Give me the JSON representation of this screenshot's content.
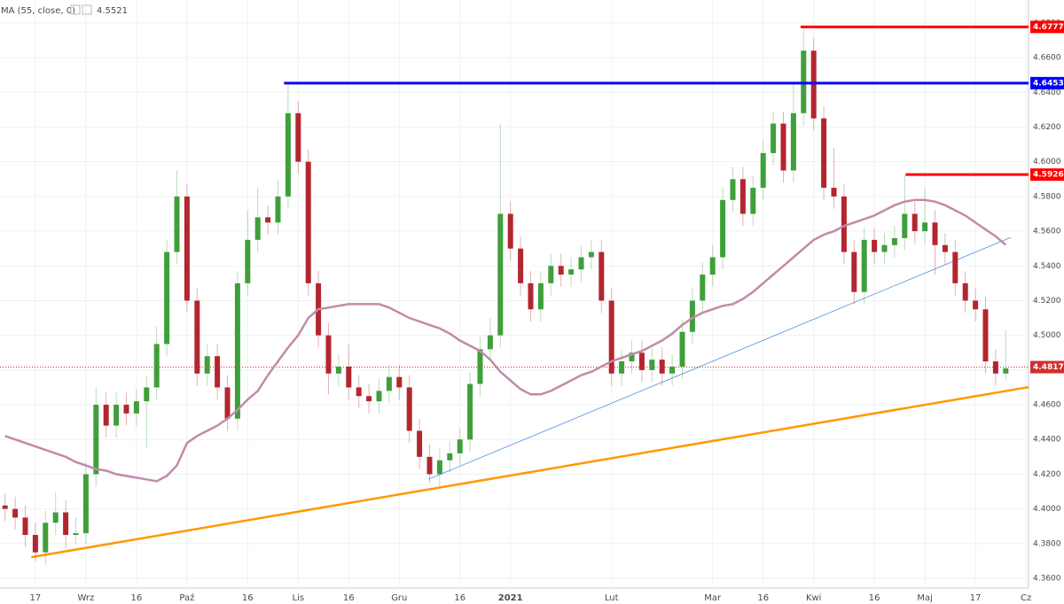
{
  "chart_data": {
    "type": "candlestick",
    "categories": [
      null,
      null,
      null,
      "17",
      null,
      null,
      null,
      null,
      "Wrz",
      null,
      null,
      null,
      null,
      "16",
      null,
      null,
      null,
      null,
      "Paź",
      null,
      null,
      null,
      null,
      null,
      "16",
      null,
      null,
      null,
      null,
      "Lis",
      null,
      null,
      null,
      null,
      "16",
      null,
      null,
      null,
      null,
      "Gru",
      null,
      null,
      null,
      null,
      null,
      "16",
      null,
      null,
      null,
      null,
      "2021",
      null,
      null,
      null,
      null,
      null,
      null,
      null,
      null,
      null,
      "Lut",
      null,
      null,
      null,
      null,
      null,
      null,
      null,
      null,
      null,
      "Mar",
      null,
      null,
      null,
      null,
      "16",
      null,
      null,
      null,
      null,
      "Kwi",
      null,
      null,
      null,
      null,
      null,
      "16",
      null,
      null,
      null,
      null,
      "Maj",
      null,
      null,
      null,
      null,
      "17",
      null,
      null,
      null,
      null,
      "Cz"
    ],
    "open": [
      4.402,
      4.4,
      4.395,
      4.385,
      4.375,
      4.392,
      4.398,
      4.385,
      4.386,
      4.42,
      4.46,
      4.448,
      4.46,
      4.455,
      4.462,
      4.47,
      4.495,
      4.548,
      4.58,
      4.52,
      4.478,
      4.488,
      4.47,
      4.452,
      4.53,
      4.555,
      4.568,
      4.565,
      4.58,
      4.628,
      4.6,
      4.53,
      4.5,
      4.478,
      4.482,
      4.47,
      4.465,
      4.462,
      4.468,
      4.476,
      4.47,
      4.445,
      4.43,
      4.42,
      4.428,
      4.432,
      4.44,
      4.472,
      4.492,
      4.5,
      4.57,
      4.55,
      4.53,
      4.515,
      4.53,
      4.54,
      4.535,
      4.538,
      4.545,
      4.548,
      4.52,
      4.478,
      4.485,
      4.49,
      4.48,
      4.486,
      4.478,
      4.482,
      4.502,
      4.52,
      4.535,
      4.545,
      4.578,
      4.59,
      4.57,
      4.585,
      4.605,
      4.622,
      4.595,
      4.628,
      4.664,
      4.625,
      4.585,
      4.58,
      4.548,
      4.525,
      4.555,
      4.548,
      4.552,
      4.556,
      4.57,
      4.56,
      4.565,
      4.552,
      4.548,
      4.53,
      4.52,
      4.515,
      4.485,
      4.478,
      null,
      null
    ],
    "high": [
      4.409,
      4.407,
      4.402,
      4.392,
      4.399,
      4.41,
      4.405,
      4.395,
      4.427,
      4.47,
      4.467,
      4.467,
      4.467,
      4.469,
      4.477,
      4.505,
      4.555,
      4.595,
      4.587,
      4.527,
      4.495,
      4.495,
      4.477,
      4.537,
      4.572,
      4.585,
      4.575,
      4.59,
      4.6453,
      4.635,
      4.607,
      4.537,
      4.507,
      4.489,
      4.495,
      4.477,
      4.472,
      4.475,
      4.483,
      4.483,
      4.477,
      4.452,
      4.437,
      4.435,
      4.439,
      4.447,
      4.479,
      4.499,
      4.51,
      4.622,
      4.577,
      4.557,
      4.537,
      4.537,
      4.547,
      4.547,
      4.545,
      4.552,
      4.555,
      4.555,
      4.527,
      4.492,
      4.497,
      4.497,
      4.493,
      4.493,
      4.489,
      4.509,
      4.527,
      4.542,
      4.552,
      4.585,
      4.597,
      4.597,
      4.592,
      4.612,
      4.629,
      4.629,
      4.645,
      4.6777,
      4.671,
      4.632,
      4.608,
      4.587,
      4.555,
      4.562,
      4.562,
      4.559,
      4.563,
      4.5926,
      4.577,
      4.585,
      4.572,
      4.559,
      4.555,
      4.537,
      4.527,
      4.522,
      4.492,
      4.503,
      null,
      null
    ],
    "low": [
      4.393,
      4.388,
      4.378,
      4.37,
      4.368,
      4.385,
      4.378,
      4.38,
      4.38,
      4.413,
      4.441,
      4.441,
      4.448,
      4.448,
      4.435,
      4.463,
      4.488,
      4.541,
      4.513,
      4.471,
      4.471,
      4.463,
      4.445,
      4.445,
      4.523,
      4.548,
      4.558,
      4.558,
      4.573,
      4.593,
      4.523,
      4.493,
      4.466,
      4.471,
      4.463,
      4.458,
      4.455,
      4.455,
      4.461,
      4.463,
      4.438,
      4.423,
      4.415,
      4.413,
      4.421,
      4.425,
      4.433,
      4.465,
      4.485,
      4.493,
      4.543,
      4.523,
      4.508,
      4.508,
      4.523,
      4.528,
      4.528,
      4.531,
      4.538,
      4.513,
      4.471,
      4.471,
      4.478,
      4.473,
      4.473,
      4.471,
      4.471,
      4.475,
      4.495,
      4.513,
      4.528,
      4.538,
      4.571,
      4.563,
      4.563,
      4.578,
      4.598,
      4.588,
      4.588,
      4.621,
      4.618,
      4.578,
      4.573,
      4.541,
      4.518,
      4.518,
      4.541,
      4.541,
      4.545,
      4.549,
      4.553,
      4.553,
      4.535,
      4.541,
      4.523,
      4.513,
      4.508,
      4.478,
      4.471,
      4.474,
      null,
      null
    ],
    "close": [
      4.4,
      4.395,
      4.385,
      4.375,
      4.392,
      4.398,
      4.385,
      4.386,
      4.42,
      4.46,
      4.448,
      4.46,
      4.455,
      4.462,
      4.47,
      4.495,
      4.548,
      4.58,
      4.52,
      4.478,
      4.488,
      4.47,
      4.452,
      4.53,
      4.555,
      4.568,
      4.565,
      4.58,
      4.628,
      4.6,
      4.53,
      4.5,
      4.478,
      4.482,
      4.47,
      4.465,
      4.462,
      4.468,
      4.476,
      4.47,
      4.445,
      4.43,
      4.42,
      4.428,
      4.432,
      4.44,
      4.472,
      4.492,
      4.5,
      4.57,
      4.55,
      4.53,
      4.515,
      4.53,
      4.54,
      4.535,
      4.538,
      4.545,
      4.548,
      4.52,
      4.478,
      4.485,
      4.49,
      4.48,
      4.486,
      4.478,
      4.482,
      4.502,
      4.52,
      4.535,
      4.545,
      4.578,
      4.59,
      4.57,
      4.585,
      4.605,
      4.622,
      4.595,
      4.628,
      4.664,
      4.625,
      4.585,
      4.58,
      4.548,
      4.525,
      4.555,
      4.548,
      4.552,
      4.556,
      4.57,
      4.56,
      4.565,
      4.552,
      4.548,
      4.53,
      4.52,
      4.515,
      4.485,
      4.478,
      4.481,
      null,
      null
    ],
    "up_color": "#3f9f3a",
    "down_color": "#b3262f",
    "series": [
      {
        "name": "MA (55, close, 0)",
        "color": "#c28aa8",
        "values": [
          4.442,
          4.44,
          4.438,
          4.436,
          4.434,
          4.432,
          4.43,
          4.427,
          4.425,
          4.423,
          4.422,
          4.42,
          4.419,
          4.418,
          4.417,
          4.416,
          4.419,
          4.425,
          4.438,
          4.442,
          4.445,
          4.448,
          4.452,
          4.457,
          4.463,
          4.468,
          4.477,
          4.485,
          4.493,
          4.5,
          4.51,
          4.515,
          4.516,
          4.517,
          4.518,
          4.518,
          4.518,
          4.518,
          4.516,
          4.513,
          4.51,
          4.508,
          4.506,
          4.504,
          4.501,
          4.497,
          4.494,
          4.491,
          4.486,
          4.479,
          4.474,
          4.469,
          4.466,
          4.466,
          4.468,
          4.471,
          4.474,
          4.477,
          4.479,
          4.482,
          4.485,
          4.487,
          4.489,
          4.491,
          4.494,
          4.497,
          4.501,
          4.506,
          4.51,
          4.513,
          4.515,
          4.517,
          4.518,
          4.521,
          4.525,
          4.53,
          4.535,
          4.54,
          4.545,
          4.55,
          4.555,
          4.558,
          4.56,
          4.563,
          4.565,
          4.567,
          4.569,
          4.572,
          4.575,
          4.577,
          4.578,
          4.578,
          4.577,
          4.575,
          4.572,
          4.569,
          4.565,
          4.561,
          4.557,
          4.5521,
          null,
          null
        ]
      }
    ],
    "ylim": [
      4.3544,
      4.6932
    ],
    "yticks": [
      {
        "value": 4.36,
        "label": "4.3600"
      },
      {
        "value": 4.38,
        "label": "4.3800"
      },
      {
        "value": 4.4,
        "label": "4.4000"
      },
      {
        "value": 4.42,
        "label": "4.4200"
      },
      {
        "value": 4.44,
        "label": "4.4400"
      },
      {
        "value": 4.46,
        "label": "4.4600"
      },
      {
        "value": 4.48,
        "label": "4.4800"
      },
      {
        "value": 4.5,
        "label": "4.5000"
      },
      {
        "value": 4.52,
        "label": "4.5200"
      },
      {
        "value": 4.54,
        "label": "4.5400"
      },
      {
        "value": 4.56,
        "label": "4.5600"
      },
      {
        "value": 4.58,
        "label": "4.5800"
      },
      {
        "value": 4.6,
        "label": "4.6000"
      },
      {
        "value": 4.62,
        "label": "4.6200"
      },
      {
        "value": 4.64,
        "label": "4.6400"
      },
      {
        "value": 4.66,
        "label": "4.6600"
      },
      {
        "value": 4.68,
        "label": "4.6800"
      }
    ],
    "grid": true,
    "last_price": 4.4817,
    "last_price_color": "#d32f2f",
    "hlines": [
      {
        "value": 4.6777,
        "color": "#ff0000",
        "start": 78.7
      },
      {
        "value": 4.6453,
        "color": "#0000ff",
        "start": 27.6
      },
      {
        "value": 4.5926,
        "color": "#ff0000",
        "start": 89.1
      }
    ],
    "trendlines": [
      {
        "points": [
          [
            2.6,
            4.3722
          ],
          [
            101.3,
            4.4702
          ]
        ],
        "color": "#ff9800",
        "width": 2.5
      },
      {
        "points": [
          [
            41.9,
            4.4171
          ],
          [
            99.5,
            4.5564
          ]
        ],
        "color": "#4a90e2",
        "width": 0.8
      }
    ]
  }
}
